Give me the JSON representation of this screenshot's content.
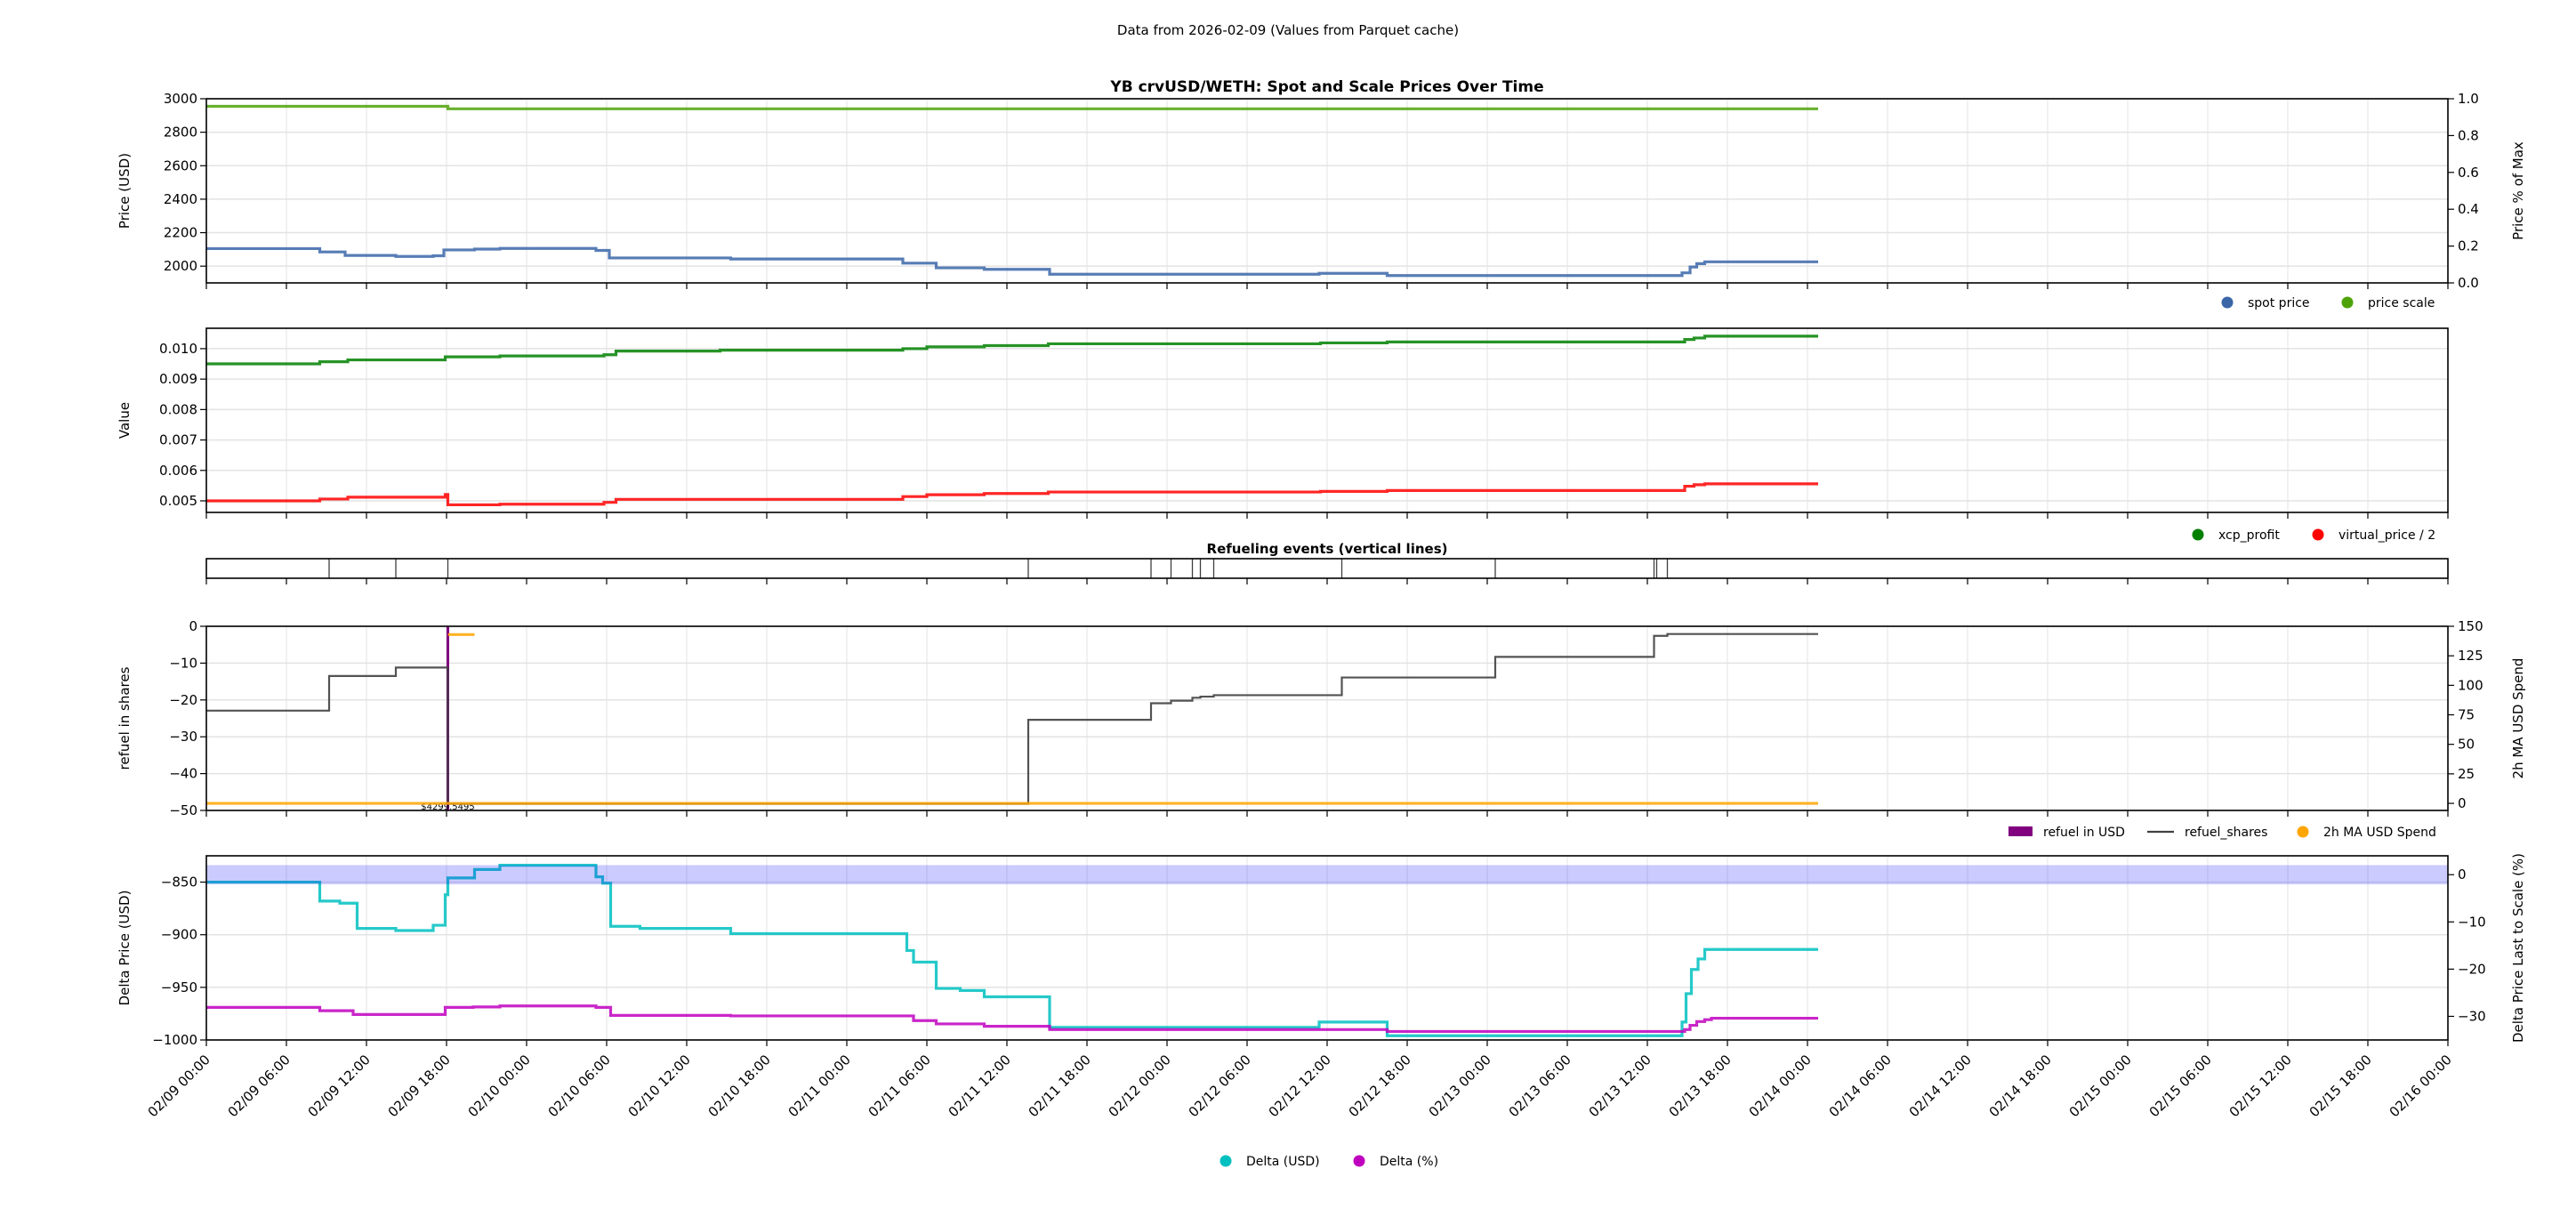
{
  "header": {
    "subtitle": "Data from 2026-02-09 (Values from Parquet cache)"
  },
  "chart_data": [
    {
      "type": "line",
      "title": "YB crvUSD/WETH: Spot and Scale Prices Over Time",
      "ylabel": "Price (USD)",
      "ylabel_right": "Price % of Max",
      "ylim": [
        1900,
        3000
      ],
      "ylim_right": [
        0,
        1
      ],
      "yticks": [
        2000,
        2200,
        2400,
        2600,
        2800,
        3000
      ],
      "yticks_right": [
        "0.0",
        "0.2",
        "0.4",
        "0.6",
        "0.8",
        "1.0"
      ],
      "grid": true,
      "legend": "below-right",
      "series": [
        {
          "name": "spot price",
          "color": "#3a66a8",
          "step": true,
          "points": [
            [
              "2026-02-09 00:00",
              2105
            ],
            [
              "2026-02-09 08:30",
              2085
            ],
            [
              "2026-02-09 10:24",
              2064
            ],
            [
              "2026-02-09 14:12",
              2058
            ],
            [
              "2026-02-09 17:00",
              2062
            ],
            [
              "2026-02-09 17:48",
              2097
            ],
            [
              "2026-02-09 20:06",
              2102
            ],
            [
              "2026-02-09 22:00",
              2106
            ],
            [
              "2026-02-10 05:12",
              2094
            ],
            [
              "2026-02-10 06:12",
              2049
            ],
            [
              "2026-02-10 15:18",
              2043
            ],
            [
              "2026-02-11 04:12",
              2018
            ],
            [
              "2026-02-11 06:42",
              1990
            ],
            [
              "2026-02-11 10:18",
              1981
            ],
            [
              "2026-02-11 15:12",
              1952
            ],
            [
              "2026-02-12 11:24",
              1957
            ],
            [
              "2026-02-12 16:30",
              1944
            ],
            [
              "2026-02-13 14:36",
              1960
            ],
            [
              "2026-02-13 15:12",
              1995
            ],
            [
              "2026-02-13 15:42",
              2015
            ],
            [
              "2026-02-13 16:18",
              2026
            ],
            [
              "2026-02-14 00:48",
              2026
            ]
          ]
        },
        {
          "name": "price scale",
          "color": "#4ea30a",
          "step": true,
          "points": [
            [
              "2026-02-09 00:00",
              2955
            ],
            [
              "2026-02-09 18:06",
              2940
            ],
            [
              "2026-02-14 00:48",
              2940
            ]
          ]
        }
      ]
    },
    {
      "type": "line",
      "ylabel": "Value",
      "ylim": [
        0.00462,
        0.01067
      ],
      "yticks": [
        "0.005",
        "0.006",
        "0.007",
        "0.008",
        "0.009",
        "0.010"
      ],
      "grid": true,
      "legend": "below-right",
      "series": [
        {
          "name": "xcp_profit",
          "color": "#008000",
          "step": true,
          "points": [
            [
              "2026-02-09 00:00",
              0.0095
            ],
            [
              "2026-02-09 08:30",
              0.00957
            ],
            [
              "2026-02-09 10:36",
              0.00963
            ],
            [
              "2026-02-09 17:54",
              0.00973
            ],
            [
              "2026-02-09 22:00",
              0.00976
            ],
            [
              "2026-02-10 05:48",
              0.0098
            ],
            [
              "2026-02-10 06:42",
              0.00992
            ],
            [
              "2026-02-10 14:30",
              0.00995
            ],
            [
              "2026-02-11 04:12",
              0.01
            ],
            [
              "2026-02-11 06:00",
              0.01006
            ],
            [
              "2026-02-11 10:18",
              0.0101
            ],
            [
              "2026-02-11 15:06",
              0.01016
            ],
            [
              "2026-02-12 11:30",
              0.01019
            ],
            [
              "2026-02-12 16:30",
              0.01022
            ],
            [
              "2026-02-13 14:48",
              0.0103
            ],
            [
              "2026-02-13 15:30",
              0.01035
            ],
            [
              "2026-02-13 16:18",
              0.01041
            ],
            [
              "2026-02-14 00:48",
              0.01041
            ]
          ]
        },
        {
          "name": "virtual_price / 2",
          "color": "#ff0000",
          "step": true,
          "points": [
            [
              "2026-02-09 00:00",
              0.005
            ],
            [
              "2026-02-09 08:30",
              0.00506
            ],
            [
              "2026-02-09 10:36",
              0.00512
            ],
            [
              "2026-02-09 17:54",
              0.00521
            ],
            [
              "2026-02-09 18:06",
              0.00487
            ],
            [
              "2026-02-09 22:00",
              0.00489
            ],
            [
              "2026-02-10 05:48",
              0.00495
            ],
            [
              "2026-02-10 06:42",
              0.00505
            ],
            [
              "2026-02-11 04:12",
              0.00514
            ],
            [
              "2026-02-11 06:00",
              0.0052
            ],
            [
              "2026-02-11 10:18",
              0.00524
            ],
            [
              "2026-02-11 15:06",
              0.00529
            ],
            [
              "2026-02-12 11:30",
              0.00531
            ],
            [
              "2026-02-12 16:30",
              0.00534
            ],
            [
              "2026-02-13 14:48",
              0.00548
            ],
            [
              "2026-02-13 15:30",
              0.00553
            ],
            [
              "2026-02-13 16:18",
              0.00556
            ],
            [
              "2026-02-14 00:48",
              0.00556
            ]
          ]
        }
      ]
    },
    {
      "type": "events",
      "title": "Refueling events (vertical lines)",
      "color": "#000000",
      "events": [
        "2026-02-09 09:12",
        "2026-02-09 14:12",
        "2026-02-09 18:06",
        "2026-02-11 13:36",
        "2026-02-11 22:48",
        "2026-02-12 00:18",
        "2026-02-12 01:54",
        "2026-02-12 02:30",
        "2026-02-12 03:30",
        "2026-02-12 13:06",
        "2026-02-13 00:36",
        "2026-02-13 12:30",
        "2026-02-13 12:42",
        "2026-02-13 13:30"
      ]
    },
    {
      "type": "line",
      "ylabel": "refuel in shares",
      "ylabel_right": "2h MA USD Spend",
      "ylim": [
        -50,
        0
      ],
      "ylim_right": [
        -6,
        150
      ],
      "yticks": [
        -50,
        -40,
        -30,
        -20,
        -10,
        0
      ],
      "yticks_right": [
        0,
        25,
        50,
        75,
        100,
        125,
        150
      ],
      "grid": true,
      "legend": "below-right",
      "bar": {
        "name": "refuel in USD",
        "color": "#800080",
        "time": "2026-02-09 18:06",
        "value": 4299.5495,
        "label": "$4299.5495"
      },
      "series": [
        {
          "name": "refuel_shares",
          "color": "#404040",
          "step": true,
          "points": [
            [
              "2026-02-09 00:00",
              -22.9
            ],
            [
              "2026-02-09 09:12",
              -13.5
            ],
            [
              "2026-02-09 14:12",
              -11.2
            ],
            [
              "2026-02-09 18:06",
              -48.2
            ],
            [
              "2026-02-11 13:36",
              -25.4
            ],
            [
              "2026-02-11 22:48",
              -20.9
            ],
            [
              "2026-02-12 00:18",
              -20.2
            ],
            [
              "2026-02-12 01:54",
              -19.4
            ],
            [
              "2026-02-12 02:30",
              -19.1
            ],
            [
              "2026-02-12 03:30",
              -18.7
            ],
            [
              "2026-02-12 13:06",
              -13.9
            ],
            [
              "2026-02-13 00:36",
              -8.3
            ],
            [
              "2026-02-13 12:30",
              -2.6
            ],
            [
              "2026-02-13 13:30",
              -2.1
            ],
            [
              "2026-02-14 00:48",
              -2.1
            ]
          ]
        },
        {
          "name": "2h MA USD Spend",
          "color": "#ffa500",
          "axis": "right",
          "step": true,
          "segments": [
            [
              [
                "2026-02-09 00:00",
                0
              ],
              [
                "2026-02-14 00:48",
                0
              ]
            ],
            [
              [
                "2026-02-09 18:06",
                143
              ],
              [
                "2026-02-09 20:06",
                143
              ]
            ]
          ]
        }
      ]
    },
    {
      "type": "line",
      "ylabel": "Delta Price (USD)",
      "ylabel_right": "Delta Price Last to Scale (%)",
      "ylabel_color": "#00bfbf",
      "ylabel_right_color": "#bf00bf",
      "ylim": [
        -1000,
        -825
      ],
      "ylim_right": [
        -35,
        4
      ],
      "yticks": [
        -1000,
        -950,
        -900,
        -850
      ],
      "yticks_right": [
        -30,
        -20,
        -10,
        0
      ],
      "band_right": [
        -2,
        2
      ],
      "band_color": "#0000ff",
      "grid": true,
      "legend": "bottom-center",
      "xticks": [
        "02/09 00:00",
        "02/09 06:00",
        "02/09 12:00",
        "02/09 18:00",
        "02/10 00:00",
        "02/10 06:00",
        "02/10 12:00",
        "02/10 18:00",
        "02/11 00:00",
        "02/11 06:00",
        "02/11 12:00",
        "02/11 18:00",
        "02/12 00:00",
        "02/12 06:00",
        "02/12 12:00",
        "02/12 18:00",
        "02/13 00:00",
        "02/13 06:00",
        "02/13 12:00",
        "02/13 18:00",
        "02/14 00:00",
        "02/14 06:00",
        "02/14 12:00",
        "02/14 18:00",
        "02/15 00:00",
        "02/15 06:00",
        "02/15 12:00",
        "02/15 18:00",
        "02/16 00:00"
      ],
      "xlim": [
        "2026-02-09 00:00",
        "2026-02-16 00:00"
      ],
      "series": [
        {
          "name": "Delta (USD)",
          "color": "#00bfbf",
          "step": true,
          "points": [
            [
              "2026-02-09 00:00",
              -850
            ],
            [
              "2026-02-09 08:30",
              -868
            ],
            [
              "2026-02-09 10:00",
              -870
            ],
            [
              "2026-02-09 11:18",
              -894
            ],
            [
              "2026-02-09 14:12",
              -896
            ],
            [
              "2026-02-09 17:00",
              -891
            ],
            [
              "2026-02-09 17:54",
              -862
            ],
            [
              "2026-02-09 18:06",
              -846
            ],
            [
              "2026-02-09 20:06",
              -838
            ],
            [
              "2026-02-09 22:00",
              -834
            ],
            [
              "2026-02-10 05:12",
              -845
            ],
            [
              "2026-02-10 05:42",
              -851
            ],
            [
              "2026-02-10 06:18",
              -892
            ],
            [
              "2026-02-10 08:30",
              -894
            ],
            [
              "2026-02-10 15:18",
              -899
            ],
            [
              "2026-02-11 04:30",
              -915
            ],
            [
              "2026-02-11 05:00",
              -926
            ],
            [
              "2026-02-11 06:42",
              -951
            ],
            [
              "2026-02-11 08:30",
              -953
            ],
            [
              "2026-02-11 10:18",
              -959
            ],
            [
              "2026-02-11 15:12",
              -988
            ],
            [
              "2026-02-12 11:24",
              -983
            ],
            [
              "2026-02-12 16:30",
              -996
            ],
            [
              "2026-02-13 14:36",
              -983
            ],
            [
              "2026-02-13 14:54",
              -956
            ],
            [
              "2026-02-13 15:18",
              -933
            ],
            [
              "2026-02-13 15:48",
              -923
            ],
            [
              "2026-02-13 16:18",
              -914
            ],
            [
              "2026-02-14 00:48",
              -914
            ]
          ]
        },
        {
          "name": "Delta (%)",
          "color": "#bf00bf",
          "axis": "right",
          "step": true,
          "points": [
            [
              "2026-02-09 00:00",
              -28.1
            ],
            [
              "2026-02-09 08:30",
              -28.8
            ],
            [
              "2026-02-09 11:00",
              -29.6
            ],
            [
              "2026-02-09 17:54",
              -28.1
            ],
            [
              "2026-02-09 20:00",
              -28.0
            ],
            [
              "2026-02-09 22:00",
              -27.8
            ],
            [
              "2026-02-10 05:12",
              -28.1
            ],
            [
              "2026-02-10 06:18",
              -29.8
            ],
            [
              "2026-02-10 15:18",
              -29.9
            ],
            [
              "2026-02-11 05:00",
              -30.9
            ],
            [
              "2026-02-11 06:42",
              -31.6
            ],
            [
              "2026-02-11 10:18",
              -32.1
            ],
            [
              "2026-02-11 15:12",
              -32.8
            ],
            [
              "2026-02-12 16:30",
              -33.2
            ],
            [
              "2026-02-13 14:48",
              -32.8
            ],
            [
              "2026-02-13 15:12",
              -31.9
            ],
            [
              "2026-02-13 15:42",
              -31.1
            ],
            [
              "2026-02-13 16:18",
              -30.7
            ],
            [
              "2026-02-13 16:48",
              -30.4
            ],
            [
              "2026-02-14 00:48",
              -30.4
            ]
          ]
        }
      ]
    }
  ]
}
